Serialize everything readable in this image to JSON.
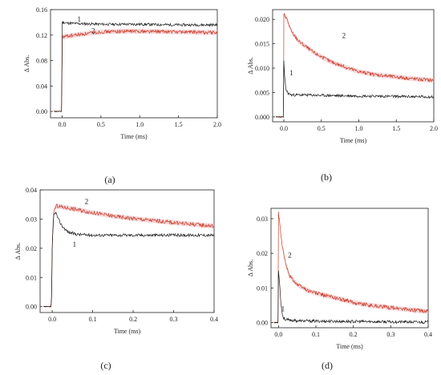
{
  "colors": {
    "series_1": "#1a1a1a",
    "series_2": "#c8402a",
    "band_2": "#f3b8c0",
    "axis": "#222222"
  },
  "chart_data": [
    {
      "type": "line",
      "panel_label": "(a)",
      "xlabel": "Time (ms)",
      "ylabel": "Δ Abs.",
      "xlim": [
        -0.15,
        2.0
      ],
      "ylim": [
        -0.01,
        0.16
      ],
      "xticks": [
        "0.0",
        "0.5",
        "1.0",
        "1.5",
        "2.0"
      ],
      "xtick_values": [
        0,
        0.5,
        1.0,
        1.5,
        2.0
      ],
      "yticks": [
        "0.00",
        "0.04",
        "0.08",
        "0.12",
        "0.16"
      ],
      "ytick_values": [
        0,
        0.04,
        0.08,
        0.12,
        0.16
      ],
      "series": [
        {
          "name": "1",
          "color": "#1a1a1a",
          "x": [
            -0.1,
            -0.005,
            0.0,
            0.005,
            0.05,
            0.2,
            0.5,
            1.0,
            1.5,
            2.0
          ],
          "y": [
            0.0,
            0.0,
            0.14,
            0.14,
            0.139,
            0.138,
            0.137,
            0.137,
            0.136,
            0.136
          ],
          "label_at": [
            0.22,
            0.141
          ]
        },
        {
          "name": "2",
          "color": "#c8402a",
          "x": [
            -0.1,
            -0.005,
            0.0,
            0.005,
            0.1,
            0.3,
            0.5,
            0.8,
            1.0,
            1.5,
            2.0
          ],
          "y": [
            0.0,
            0.0,
            0.115,
            0.117,
            0.119,
            0.122,
            0.125,
            0.126,
            0.126,
            0.125,
            0.124
          ],
          "label_at": [
            0.4,
            0.123
          ]
        }
      ]
    },
    {
      "type": "line",
      "panel_label": "(b)",
      "xlabel": "Time (ms)",
      "ylabel": "Δ Abs.",
      "xlim": [
        -0.15,
        2.0
      ],
      "ylim": [
        -0.001,
        0.022
      ],
      "xticks": [
        "0.0",
        "0.5",
        "1.0",
        "1.5",
        "2.0"
      ],
      "xtick_values": [
        0,
        0.5,
        1.0,
        1.5,
        2.0
      ],
      "yticks": [
        "0.000",
        "0.005",
        "0.010",
        "0.015",
        "0.020"
      ],
      "ytick_values": [
        0,
        0.005,
        0.01,
        0.015,
        0.02
      ],
      "series": [
        {
          "name": "1",
          "color": "#1a1a1a",
          "x": [
            -0.1,
            -0.005,
            0.0,
            0.01,
            0.03,
            0.06,
            0.1,
            0.3,
            0.5,
            1.0,
            1.5,
            2.0
          ],
          "y": [
            0.0,
            0.0,
            0.0115,
            0.008,
            0.0055,
            0.0048,
            0.0045,
            0.0045,
            0.0044,
            0.0043,
            0.0042,
            0.0041
          ],
          "label_at": [
            0.1,
            0.0085
          ]
        },
        {
          "name": "2",
          "color": "#c8402a",
          "x": [
            -0.1,
            -0.005,
            0.0,
            0.03,
            0.1,
            0.2,
            0.4,
            0.6,
            0.8,
            1.0,
            1.2,
            1.5,
            1.8,
            2.0
          ],
          "y": [
            0.0,
            0.0,
            0.021,
            0.0205,
            0.0175,
            0.0155,
            0.0132,
            0.0115,
            0.0103,
            0.0093,
            0.0087,
            0.0082,
            0.0077,
            0.0075
          ],
          "label_at": [
            0.8,
            0.0162
          ]
        }
      ]
    },
    {
      "type": "line",
      "panel_label": "(c)",
      "xlabel": "Time (ms)",
      "ylabel": "Δ Abs.",
      "xlim": [
        -0.03,
        0.4
      ],
      "ylim": [
        -0.002,
        0.04
      ],
      "xticks": [
        "0.0",
        "0.1",
        "0.2",
        "0.3",
        "0.4"
      ],
      "xtick_values": [
        0,
        0.1,
        0.2,
        0.3,
        0.4
      ],
      "yticks": [
        "0.00",
        "0.01",
        "0.02",
        "0.03",
        "0.04"
      ],
      "ytick_values": [
        0,
        0.01,
        0.02,
        0.03,
        0.04
      ],
      "series": [
        {
          "name": "1",
          "color": "#1a1a1a",
          "x": [
            -0.02,
            -0.002,
            0.0,
            0.003,
            0.008,
            0.015,
            0.025,
            0.04,
            0.06,
            0.1,
            0.2,
            0.3,
            0.4
          ],
          "y": [
            0.0,
            0.0,
            0.02,
            0.031,
            0.0325,
            0.03,
            0.0275,
            0.0255,
            0.0248,
            0.0245,
            0.0245,
            0.0245,
            0.0245
          ],
          "label_at": [
            0.055,
            0.0205
          ]
        },
        {
          "name": "2",
          "color": "#c8402a",
          "x": [
            -0.02,
            -0.002,
            0.0,
            0.004,
            0.01,
            0.03,
            0.06,
            0.1,
            0.15,
            0.2,
            0.25,
            0.3,
            0.35,
            0.4
          ],
          "y": [
            0.0,
            0.0,
            0.02,
            0.033,
            0.0345,
            0.034,
            0.0333,
            0.0322,
            0.031,
            0.0302,
            0.0295,
            0.0288,
            0.0282,
            0.0276
          ],
          "label_at": [
            0.085,
            0.0352
          ]
        }
      ]
    },
    {
      "type": "line",
      "panel_label": "(d)",
      "xlabel": "Time (ms)",
      "ylabel": "Δ Abs.",
      "xlim": [
        -0.02,
        0.4
      ],
      "ylim": [
        -0.0015,
        0.033
      ],
      "xticks": [
        "0.0",
        "0.1",
        "0.2",
        "0.3",
        "0.4"
      ],
      "xtick_values": [
        0,
        0.1,
        0.2,
        0.3,
        0.4
      ],
      "yticks": [
        "0.00",
        "0.01",
        "0.02",
        "0.03"
      ],
      "ytick_values": [
        0,
        0.01,
        0.02,
        0.03
      ],
      "series": [
        {
          "name": "1",
          "color": "#1a1a1a",
          "x": [
            -0.015,
            -0.001,
            0.0,
            0.002,
            0.005,
            0.008,
            0.012,
            0.02,
            0.05,
            0.1,
            0.2,
            0.3,
            0.4
          ],
          "y": [
            0.0,
            0.0,
            0.015,
            0.013,
            0.008,
            0.004,
            0.0015,
            0.0008,
            0.0005,
            0.0004,
            0.0003,
            0.0002,
            0.0001
          ],
          "label_at": [
            0.012,
            0.0032
          ]
        },
        {
          "name": "2",
          "color": "#c8402a",
          "x": [
            -0.015,
            -0.001,
            0.0,
            0.005,
            0.01,
            0.02,
            0.03,
            0.05,
            0.08,
            0.1,
            0.15,
            0.2,
            0.25,
            0.3,
            0.35,
            0.4
          ],
          "y": [
            0.0,
            0.0,
            0.032,
            0.027,
            0.022,
            0.0165,
            0.0135,
            0.011,
            0.0092,
            0.0085,
            0.0072,
            0.0058,
            0.0049,
            0.0043,
            0.0037,
            0.0032
          ],
          "label_at": [
            0.03,
            0.0188
          ]
        }
      ]
    }
  ]
}
